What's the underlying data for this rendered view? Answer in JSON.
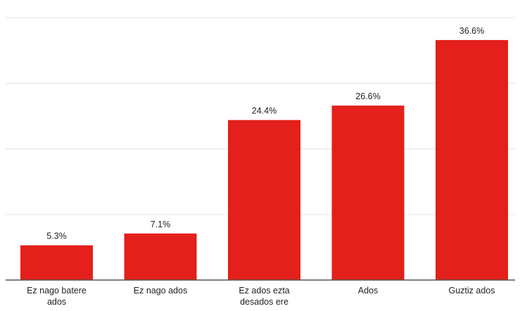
{
  "chart_data": {
    "type": "bar",
    "title": "",
    "xlabel": "",
    "ylabel": "",
    "categories": [
      [
        "Ez nago batere",
        "ados"
      ],
      [
        "Ez nago ados"
      ],
      [
        "Ez ados ezta",
        "desados ere"
      ],
      [
        "Ados"
      ],
      [
        "Guztiz ados"
      ]
    ],
    "values": [
      5.3,
      7.1,
      24.4,
      26.6,
      36.6
    ],
    "value_labels": [
      "5.3%",
      "7.1%",
      "24.4%",
      "26.6%",
      "36.6%"
    ],
    "ylim": [
      0,
      40
    ],
    "grid": true,
    "legend": "none",
    "bar_color": "#e3201b",
    "grid_color": "#ececec",
    "axis_color": "#555555",
    "text_color": "#222222"
  }
}
